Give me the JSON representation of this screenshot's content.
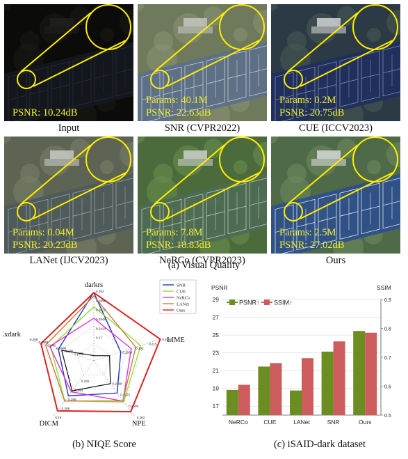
{
  "visual": {
    "section_caption": "(a) Visual Quality",
    "tiles": [
      {
        "caption": "Input",
        "params": "",
        "psnr": "PSNR: 10.24dB",
        "style": "dark"
      },
      {
        "caption": "SNR (CVPR2022)",
        "params": "Params: 40.1M",
        "psnr": "PSNR: 22.63dB",
        "style": "snr"
      },
      {
        "caption": "CUE (ICCV2023)",
        "params": "Params: 0.2M",
        "psnr": "PSNR: 20.75dB",
        "style": "cue"
      },
      {
        "caption": "LANet (IJCV2023)",
        "params": "Params: 0.04M",
        "psnr": "PSNR: 20.23dB",
        "style": "lanet"
      },
      {
        "caption": "NeRCo (CVPR2023)",
        "params": "Params: 7.8M",
        "psnr": "PSNR: 18.83dB",
        "style": "nerco"
      },
      {
        "caption": "Ours",
        "params": "Params: 2.5M",
        "psnr": "PSNR: 27.02dB",
        "style": "ours"
      }
    ]
  },
  "radar": {
    "caption": "(b) NIQE Score",
    "colors": {
      "SNR": "#2233cc",
      "CUE": "#99dd33",
      "NeRCo": "#dd33dd",
      "LANet": "#c08040",
      "Ours": "#dd2222",
      "center": "#111111"
    }
  },
  "bars": {
    "caption": "(c) iSAID-dark dataset"
  },
  "chart_data": [
    {
      "type": "radar",
      "title": "",
      "axes": [
        "darkrs",
        "LIME",
        "NPE",
        "DICM",
        "Exdark"
      ],
      "series": [
        {
          "name": "SNR",
          "values": [
            0.2924,
            0.215,
            0.2372,
            0.244,
            0.2324
          ]
        },
        {
          "name": "CUE",
          "values": [
            0.2648,
            0.2556,
            0.2586,
            0.256,
            0.248
          ]
        },
        {
          "name": "NeRCo",
          "values": [
            0.2424,
            0.2364,
            0.2564,
            0.2344,
            0.25
          ]
        },
        {
          "name": "LANet",
          "values": [
            0.2856,
            0.2456,
            0.256,
            0.2564,
            0.2584
          ]
        },
        {
          "name": "Ours",
          "values": [
            0.292,
            0.2956,
            0.282,
            0.28,
            0.268
          ]
        }
      ],
      "center_polygon": [
        0.17,
        0.192,
        0.2148,
        0.232,
        0.2256
      ],
      "rmin": 0.16,
      "rmax": 0.295,
      "axis_value_labels": [
        [
          "0.292",
          "0.2856",
          "0.2672",
          "0.2548",
          "0.2424",
          "0.17"
        ],
        [
          "0.2956",
          "0.215",
          "0.192",
          "0.1924"
        ],
        [
          "0.282",
          "0.2586",
          "0.2372",
          "0.2148"
        ],
        [
          "0.28",
          "0.268",
          "0.256",
          "0.244",
          "0.232"
        ],
        [
          "0.268",
          "0.2584",
          "0.248",
          "0.2408",
          "0.236",
          "0.2256"
        ]
      ]
    },
    {
      "type": "bar",
      "title": "",
      "categories": [
        "NeRCo",
        "CUE",
        "LANet",
        "SNR",
        "Ours"
      ],
      "series": [
        {
          "name": "PSNR↑",
          "axis": "left",
          "values": [
            18.83,
            21.46,
            18.77,
            23.14,
            25.46
          ]
        },
        {
          "name": "SSIM↑",
          "axis": "right",
          "values": [
            0.605,
            0.68,
            0.697,
            0.755,
            0.785
          ]
        }
      ],
      "ylabel": "PSNR",
      "y2label": "SSIM",
      "ylim": [
        16,
        29
      ],
      "yticks": [
        17,
        19,
        21,
        23,
        25,
        27,
        29
      ],
      "y2lim": [
        0.5,
        0.9
      ],
      "y2ticks": [
        "0.5",
        "0.6",
        "0.7",
        "0.8",
        "0.9"
      ],
      "colors": {
        "PSNR↑": "#6b8e23",
        "SSIM↑": "#cd5c5c"
      },
      "legend": "top-left",
      "grid": true
    }
  ]
}
